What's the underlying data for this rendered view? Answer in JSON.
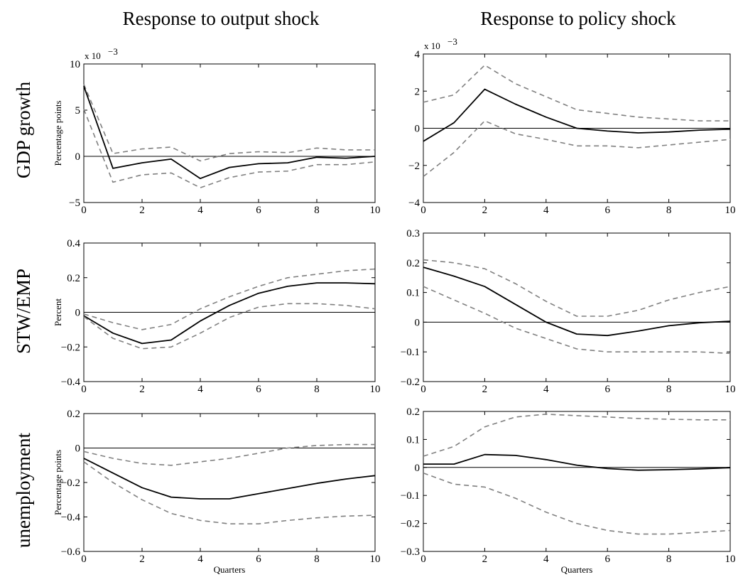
{
  "col_titles": [
    "Response to output shock",
    "Response to policy shock"
  ],
  "row_titles": [
    "GDP growth",
    "STW/EMP",
    "unemployment"
  ],
  "chart_data": [
    {
      "type": "line",
      "row": 0,
      "col": 0,
      "ylabel": "Percentage points",
      "xlabel": "",
      "sci_label": "x 10",
      "sci_exp": "−3",
      "xlim": [
        0,
        10
      ],
      "ylim": [
        -5,
        10
      ],
      "xticks": [
        0,
        2,
        4,
        6,
        8,
        10
      ],
      "yticks": [
        -5,
        0,
        5,
        10
      ],
      "ytick_labels": [
        "−5",
        "0",
        "5",
        "10"
      ],
      "x": [
        0,
        1,
        2,
        3,
        4,
        5,
        6,
        7,
        8,
        9,
        10
      ],
      "series": [
        {
          "role": "upper",
          "values": [
            7.8,
            0.3,
            0.8,
            1.0,
            -0.5,
            0.3,
            0.5,
            0.4,
            0.9,
            0.7,
            0.7
          ]
        },
        {
          "role": "median",
          "values": [
            7.6,
            -1.3,
            -0.7,
            -0.3,
            -2.4,
            -1.2,
            -0.8,
            -0.7,
            -0.1,
            -0.2,
            0.0
          ]
        },
        {
          "role": "lower",
          "values": [
            5.1,
            -2.8,
            -2.0,
            -1.8,
            -3.4,
            -2.3,
            -1.7,
            -1.6,
            -0.9,
            -0.9,
            -0.6
          ]
        }
      ]
    },
    {
      "type": "line",
      "row": 0,
      "col": 1,
      "ylabel": "",
      "xlabel": "",
      "sci_label": "x 10",
      "sci_exp": "−3",
      "xlim": [
        0,
        10
      ],
      "ylim": [
        -4,
        4
      ],
      "xticks": [
        0,
        2,
        4,
        6,
        8,
        10
      ],
      "yticks": [
        -4,
        -2,
        0,
        2,
        4
      ],
      "ytick_labels": [
        "−4",
        "−2",
        "0",
        "2",
        "4"
      ],
      "x": [
        0,
        1,
        2,
        3,
        4,
        5,
        6,
        7,
        8,
        9,
        10
      ],
      "series": [
        {
          "role": "upper",
          "values": [
            1.4,
            1.8,
            3.4,
            2.4,
            1.7,
            1.0,
            0.8,
            0.6,
            0.5,
            0.4,
            0.4
          ]
        },
        {
          "role": "median",
          "values": [
            -0.7,
            0.3,
            2.1,
            1.3,
            0.6,
            0.0,
            -0.15,
            -0.25,
            -0.2,
            -0.1,
            -0.05
          ]
        },
        {
          "role": "lower",
          "values": [
            -2.6,
            -1.3,
            0.4,
            -0.3,
            -0.6,
            -0.95,
            -0.95,
            -1.05,
            -0.9,
            -0.75,
            -0.6
          ]
        }
      ]
    },
    {
      "type": "line",
      "row": 1,
      "col": 0,
      "ylabel": "Percent",
      "xlabel": "",
      "sci_label": "",
      "sci_exp": "",
      "xlim": [
        0,
        10
      ],
      "ylim": [
        -0.4,
        0.4
      ],
      "xticks": [
        0,
        2,
        4,
        6,
        8,
        10
      ],
      "yticks": [
        -0.4,
        -0.2,
        0,
        0.2,
        0.4
      ],
      "ytick_labels": [
        "−0.4",
        "−0.2",
        "0",
        "0.2",
        "0.4"
      ],
      "x": [
        0,
        1,
        2,
        3,
        4,
        5,
        6,
        7,
        8,
        9,
        10
      ],
      "series": [
        {
          "role": "upper",
          "values": [
            -0.01,
            -0.06,
            -0.1,
            -0.07,
            0.02,
            0.09,
            0.15,
            0.2,
            0.22,
            0.24,
            0.25
          ]
        },
        {
          "role": "median",
          "values": [
            -0.02,
            -0.12,
            -0.18,
            -0.16,
            -0.05,
            0.04,
            0.11,
            0.15,
            0.17,
            0.17,
            0.165
          ]
        },
        {
          "role": "lower",
          "values": [
            -0.025,
            -0.15,
            -0.21,
            -0.2,
            -0.12,
            -0.03,
            0.03,
            0.05,
            0.05,
            0.04,
            0.02
          ]
        }
      ]
    },
    {
      "type": "line",
      "row": 1,
      "col": 1,
      "ylabel": "",
      "xlabel": "",
      "sci_label": "",
      "sci_exp": "",
      "xlim": [
        0,
        10
      ],
      "ylim": [
        -0.2,
        0.3
      ],
      "xticks": [
        0,
        2,
        4,
        6,
        8,
        10
      ],
      "yticks": [
        -0.2,
        -0.1,
        0,
        0.1,
        0.2,
        0.3
      ],
      "ytick_labels": [
        "−0.2",
        "−0.1",
        "0",
        "0.1",
        "0.2",
        "0.3"
      ],
      "x": [
        0,
        1,
        2,
        3,
        4,
        5,
        6,
        7,
        8,
        9,
        10
      ],
      "series": [
        {
          "role": "upper",
          "values": [
            0.21,
            0.2,
            0.18,
            0.13,
            0.07,
            0.02,
            0.02,
            0.04,
            0.075,
            0.1,
            0.12
          ]
        },
        {
          "role": "median",
          "values": [
            0.185,
            0.155,
            0.12,
            0.06,
            0.0,
            -0.04,
            -0.045,
            -0.03,
            -0.012,
            -0.002,
            0.003
          ]
        },
        {
          "role": "lower",
          "values": [
            0.12,
            0.075,
            0.03,
            -0.02,
            -0.055,
            -0.09,
            -0.1,
            -0.1,
            -0.1,
            -0.1,
            -0.105
          ]
        }
      ]
    },
    {
      "type": "line",
      "row": 2,
      "col": 0,
      "ylabel": "Percentage points",
      "xlabel": "Quarters",
      "sci_label": "",
      "sci_exp": "",
      "xlim": [
        0,
        10
      ],
      "ylim": [
        -0.6,
        0.2
      ],
      "xticks": [
        0,
        2,
        4,
        6,
        8,
        10
      ],
      "yticks": [
        -0.6,
        -0.4,
        -0.2,
        0,
        0.2
      ],
      "ytick_labels": [
        "−0.6",
        "−0.4",
        "−0.2",
        "0",
        "0.2"
      ],
      "x": [
        0,
        1,
        2,
        3,
        4,
        5,
        6,
        7,
        8,
        9,
        10
      ],
      "series": [
        {
          "role": "upper",
          "values": [
            -0.02,
            -0.06,
            -0.09,
            -0.1,
            -0.08,
            -0.06,
            -0.03,
            0.0,
            0.015,
            0.02,
            0.02
          ]
        },
        {
          "role": "median",
          "values": [
            -0.06,
            -0.145,
            -0.23,
            -0.285,
            -0.295,
            -0.295,
            -0.265,
            -0.235,
            -0.205,
            -0.18,
            -0.16
          ]
        },
        {
          "role": "lower",
          "values": [
            -0.08,
            -0.2,
            -0.3,
            -0.38,
            -0.42,
            -0.44,
            -0.44,
            -0.42,
            -0.405,
            -0.395,
            -0.39
          ]
        }
      ]
    },
    {
      "type": "line",
      "row": 2,
      "col": 1,
      "ylabel": "",
      "xlabel": "Quarters",
      "sci_label": "",
      "sci_exp": "",
      "xlim": [
        0,
        10
      ],
      "ylim": [
        -0.3,
        0.2
      ],
      "xticks": [
        0,
        2,
        4,
        6,
        8,
        10
      ],
      "yticks": [
        -0.3,
        -0.2,
        -0.1,
        0,
        0.1,
        0.2
      ],
      "ytick_labels": [
        "−0.3",
        "−0.2",
        "−0.1",
        "0",
        "0.1",
        "0.2"
      ],
      "x": [
        0,
        1,
        2,
        3,
        4,
        5,
        6,
        7,
        8,
        9,
        10
      ],
      "series": [
        {
          "role": "upper",
          "values": [
            0.04,
            0.075,
            0.145,
            0.18,
            0.19,
            0.185,
            0.18,
            0.175,
            0.172,
            0.17,
            0.17
          ]
        },
        {
          "role": "median",
          "values": [
            0.012,
            0.012,
            0.046,
            0.043,
            0.028,
            0.008,
            -0.004,
            -0.01,
            -0.008,
            -0.005,
            -0.001
          ]
        },
        {
          "role": "lower",
          "values": [
            -0.02,
            -0.06,
            -0.07,
            -0.11,
            -0.16,
            -0.2,
            -0.225,
            -0.238,
            -0.238,
            -0.232,
            -0.225
          ]
        }
      ]
    }
  ]
}
